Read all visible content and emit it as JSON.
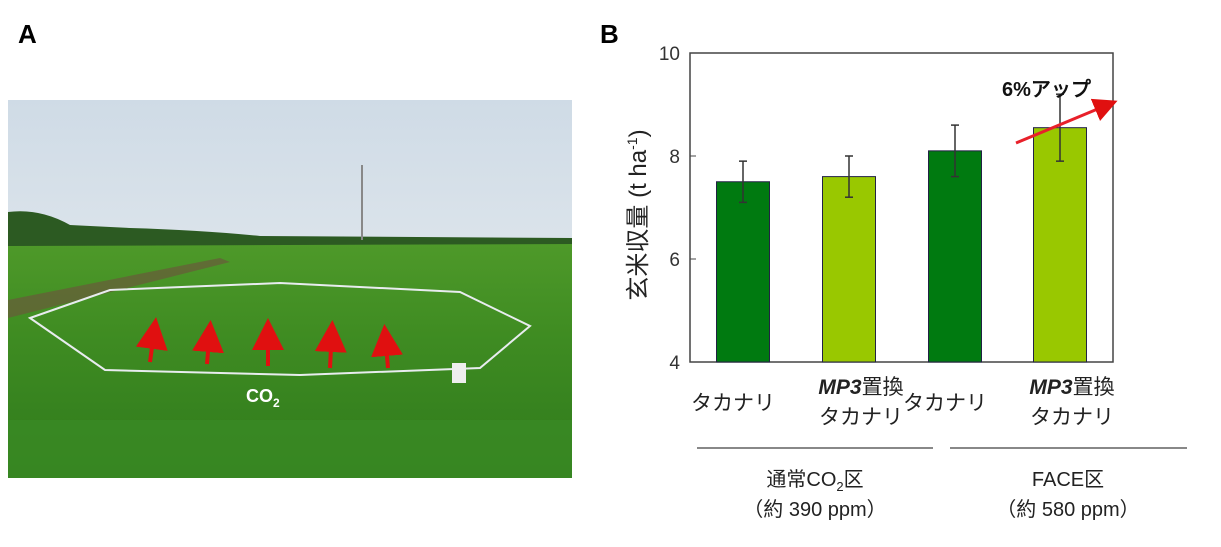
{
  "panels": {
    "a_label": "A",
    "b_label": "B"
  },
  "photo": {
    "co2_label": "CO",
    "co2_sub": "2",
    "arrow_color": "#e01010"
  },
  "chart_data": {
    "type": "bar",
    "ylabel": "玄米収量 (t ha-1)",
    "ylabel_main": "玄米収量 (t ha",
    "ylabel_sup": "-1",
    "ylabel_close": ")",
    "ylim": [
      4,
      10
    ],
    "yticks": [
      "4",
      "6",
      "8",
      "10"
    ],
    "grid": false,
    "categories": [
      {
        "line1": "タカナリ",
        "line2": "",
        "italic": ""
      },
      {
        "line1": "置換",
        "line2": "タカナリ",
        "italic": "MP3"
      },
      {
        "line1": "タカナリ",
        "line2": "",
        "italic": ""
      },
      {
        "line1": "置換",
        "line2": "タカナリ",
        "italic": "MP3"
      }
    ],
    "values": [
      7.5,
      7.6,
      8.1,
      8.55
    ],
    "error_low": [
      7.1,
      7.2,
      7.6,
      7.9
    ],
    "error_high": [
      7.9,
      8.0,
      8.6,
      9.2
    ],
    "colors": [
      "#007a10",
      "#99c800",
      "#007a10",
      "#99c800"
    ],
    "groups": [
      {
        "name_pre": "通常CO",
        "name_sub": "2",
        "name_post": "区",
        "sub": "（約 390 ppm）"
      },
      {
        "name_pre": "FACE区",
        "name_sub": "",
        "name_post": "",
        "sub": "（約 580 ppm）"
      }
    ],
    "annotation": "6%アップ",
    "annotation_color": "#e8202a"
  }
}
